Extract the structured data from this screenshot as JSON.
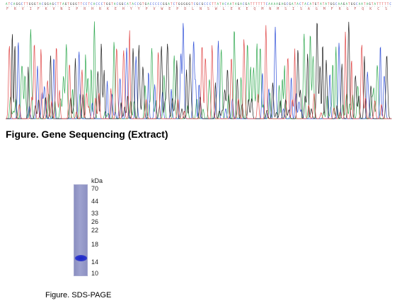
{
  "sequencing": {
    "caption": "Figure. Gene Sequencing (Extract)",
    "base_colors": {
      "A": "#2fa84f",
      "C": "#3050d8",
      "G": "#222222",
      "T": "#e04848"
    }
  },
  "sds_page": {
    "caption": "Figure. SDS-PAGE",
    "unit": "kDa",
    "markers": [
      "70",
      "44",
      "33",
      "26",
      "22",
      "18",
      "14",
      "10"
    ],
    "band_kda": 15,
    "lane_color": "#9297c8",
    "band_color": "#1f2ac6"
  }
}
